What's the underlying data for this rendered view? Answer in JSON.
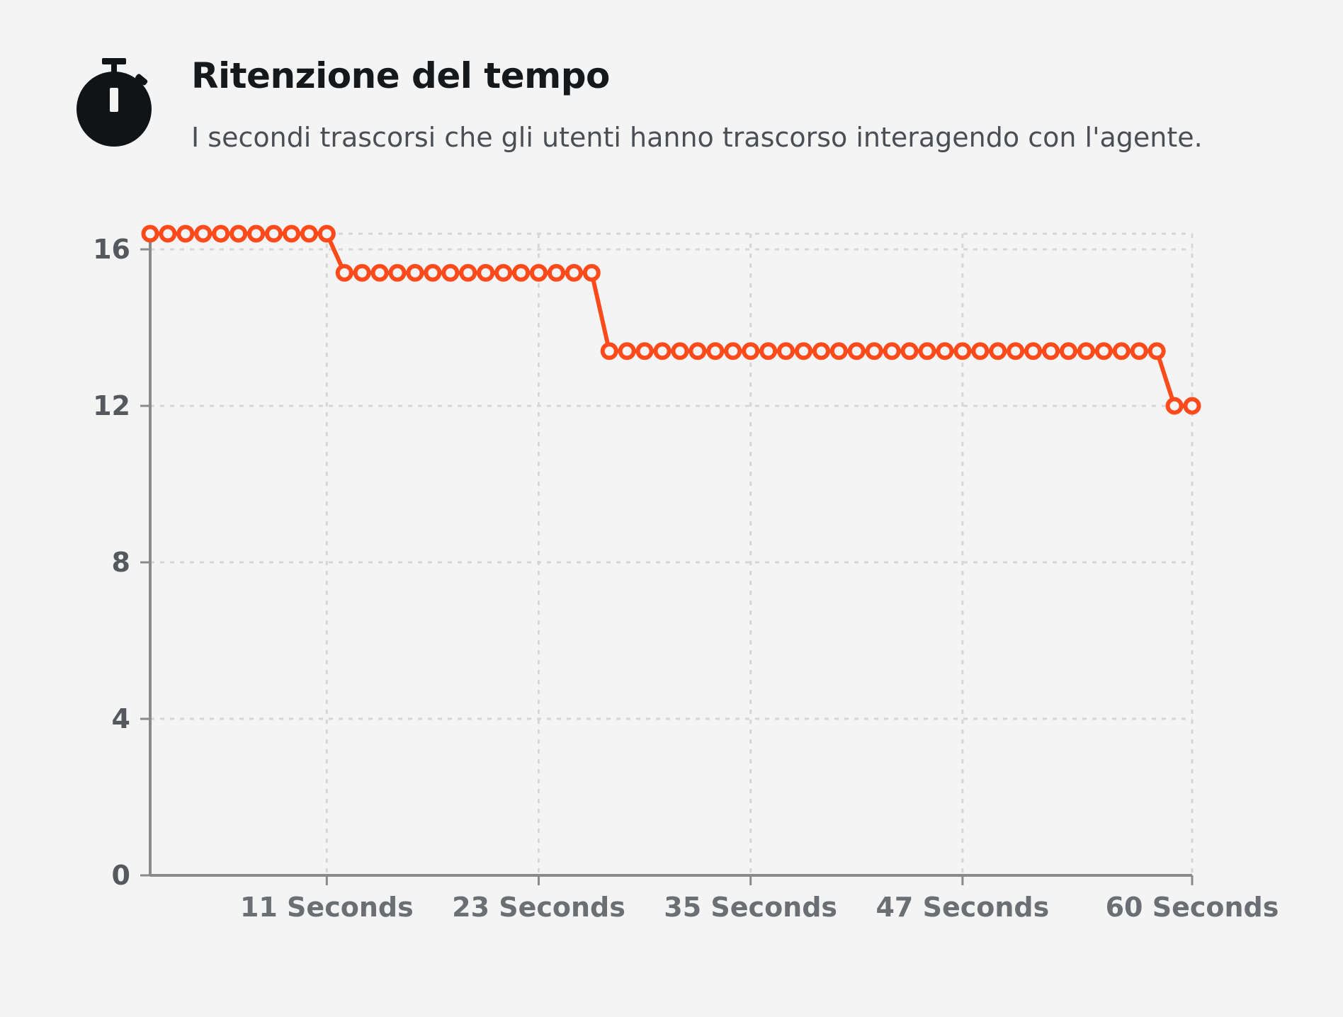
{
  "header": {
    "icon": "stopwatch-icon",
    "title": "Ritenzione del tempo",
    "subtitle": "I secondi trascorsi che gli utenti hanno trascorso interagendo con l'agente."
  },
  "colors": {
    "accent": "#ff4a1c",
    "icon": "#111417",
    "axis": "#8a8a8a",
    "grid": "#d6d6d6",
    "background": "#f4f4f4"
  },
  "chart_data": {
    "type": "line",
    "title": "",
    "xlabel": "",
    "ylabel": "",
    "x": [
      1,
      2,
      3,
      4,
      5,
      6,
      7,
      8,
      9,
      10,
      11,
      12,
      13,
      14,
      15,
      16,
      17,
      18,
      19,
      20,
      21,
      22,
      23,
      24,
      25,
      26,
      27,
      28,
      29,
      30,
      31,
      32,
      33,
      34,
      35,
      36,
      37,
      38,
      39,
      40,
      41,
      42,
      43,
      44,
      45,
      46,
      47,
      48,
      49,
      50,
      51,
      52,
      53,
      54,
      55,
      56,
      57,
      58,
      59,
      60
    ],
    "series": [
      {
        "values": [
          16.4,
          16.4,
          16.4,
          16.4,
          16.4,
          16.4,
          16.4,
          16.4,
          16.4,
          16.4,
          16.4,
          15.4,
          15.4,
          15.4,
          15.4,
          15.4,
          15.4,
          15.4,
          15.4,
          15.4,
          15.4,
          15.4,
          15.4,
          15.4,
          15.4,
          15.4,
          13.4,
          13.4,
          13.4,
          13.4,
          13.4,
          13.4,
          13.4,
          13.4,
          13.4,
          13.4,
          13.4,
          13.4,
          13.4,
          13.4,
          13.4,
          13.4,
          13.4,
          13.4,
          13.4,
          13.4,
          13.4,
          13.4,
          13.4,
          13.4,
          13.4,
          13.4,
          13.4,
          13.4,
          13.4,
          13.4,
          13.4,
          13.4,
          12,
          12
        ]
      }
    ],
    "y_ticks": [
      "0",
      "4",
      "8",
      "12",
      "16"
    ],
    "y_tick_values": [
      0,
      4,
      8,
      12,
      16
    ],
    "x_tick_labels": [
      "11 Seconds",
      "23 Seconds",
      "35 Seconds",
      "47 Seconds",
      "60 Seconds"
    ],
    "x_tick_values": [
      11,
      23,
      35,
      47,
      60
    ],
    "xlim": [
      1,
      60
    ],
    "ylim": [
      0,
      16.4
    ],
    "grid": true,
    "markers": "hollow-circle"
  }
}
